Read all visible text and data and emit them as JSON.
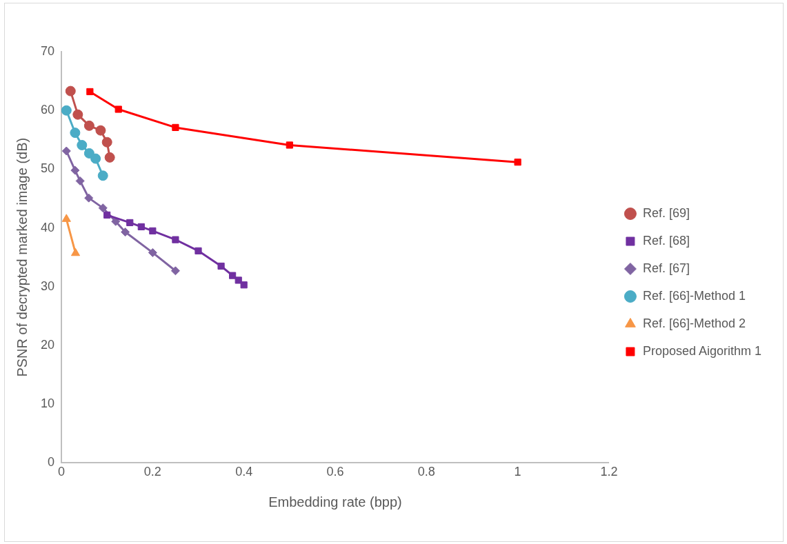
{
  "chart_data": {
    "type": "line",
    "xlabel": "Embedding rate (bpp)",
    "ylabel": "PSNR of decrypted marked image (dB)",
    "xlim": [
      0,
      1.2
    ],
    "xticks": [
      0,
      0.2,
      0.4,
      0.6,
      0.8,
      1,
      1.2
    ],
    "ylim": [
      0,
      70
    ],
    "yticks": [
      0,
      10,
      20,
      30,
      40,
      50,
      60,
      70
    ],
    "grid": false,
    "legend": "right",
    "line_style": "solid",
    "series": [
      {
        "name": "Ref. [69]",
        "color": "#c0504d",
        "marker": "circle",
        "x": [
          0.02,
          0.036,
          0.061,
          0.086,
          0.1,
          0.106
        ],
        "values": [
          63.3,
          59.3,
          57.4,
          56.6,
          54.6,
          52.0
        ]
      },
      {
        "name": "Ref. [68]",
        "color": "#7030a0",
        "marker": "square",
        "x": [
          0.1,
          0.15,
          0.175,
          0.2,
          0.25,
          0.3,
          0.35,
          0.375,
          0.388,
          0.4
        ],
        "values": [
          42.2,
          40.9,
          40.2,
          39.5,
          38.0,
          36.1,
          33.5,
          31.9,
          31.1,
          30.3
        ]
      },
      {
        "name": "Ref. [67]",
        "color": "#8064a2",
        "marker": "diamond",
        "x": [
          0.011,
          0.03,
          0.041,
          0.06,
          0.091,
          0.119,
          0.14,
          0.2,
          0.25
        ],
        "values": [
          53.1,
          49.8,
          48.0,
          45.1,
          43.4,
          41.1,
          39.3,
          35.8,
          32.7
        ]
      },
      {
        "name": "Ref. [66]-Method 1",
        "color": "#4bacc6",
        "marker": "circle",
        "x": [
          0.011,
          0.03,
          0.045,
          0.061,
          0.075,
          0.091
        ],
        "values": [
          60.0,
          56.2,
          54.1,
          52.7,
          51.8,
          48.9
        ]
      },
      {
        "name": "Ref. [66]-Method 2",
        "color": "#f79646",
        "marker": "triangle",
        "x": [
          0.011,
          0.031
        ],
        "values": [
          41.5,
          35.7
        ]
      },
      {
        "name": "Proposed Aigorithm 1",
        "color": "#ff0000",
        "marker": "square",
        "x": [
          0.0625,
          0.125,
          0.25,
          0.5,
          1
        ],
        "values": [
          63.2,
          60.2,
          57.1,
          54.1,
          51.2
        ]
      }
    ]
  }
}
